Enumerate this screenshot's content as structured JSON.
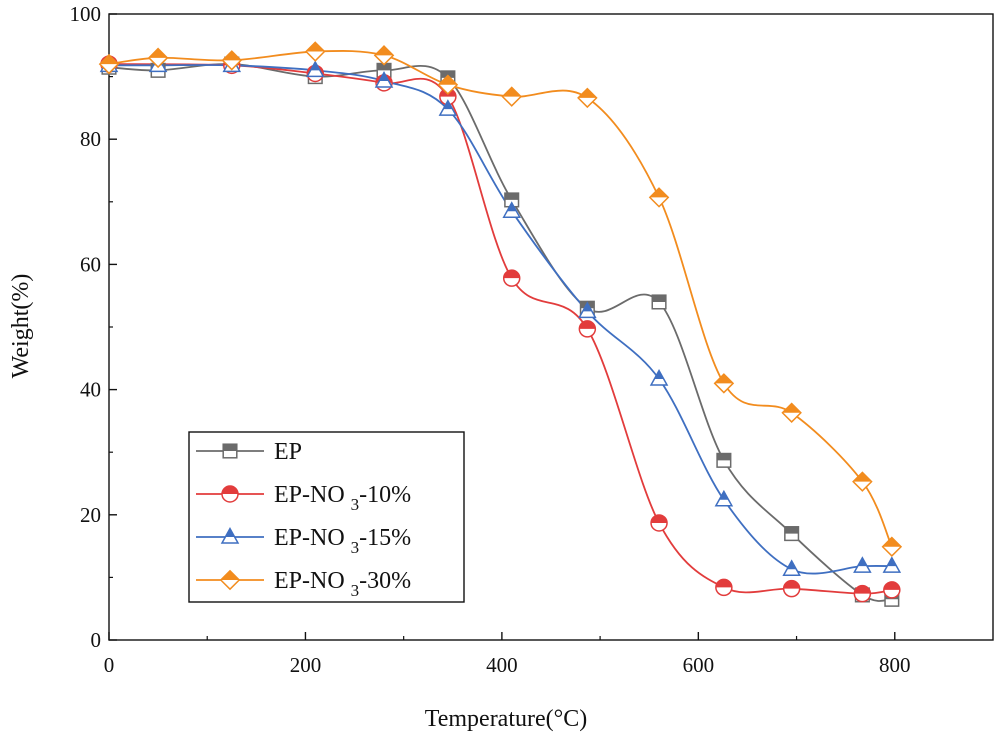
{
  "chart_data": {
    "type": "line",
    "title": "",
    "xlabel": "Temperature(°C)",
    "ylabel": "Weight(%)",
    "xlim": [
      0,
      900
    ],
    "ylim": [
      0,
      100
    ],
    "xticks": [
      0,
      200,
      400,
      600,
      800
    ],
    "yticks": [
      0,
      20,
      40,
      60,
      80,
      100
    ],
    "grid": false,
    "legend_position": "lower-left",
    "series": [
      {
        "name": "EP",
        "legend": {
          "main": "EP",
          "sub": "",
          "tail": ""
        },
        "color": "#6b6b6b",
        "marker": "square-half",
        "points": [
          [
            0,
            91.5
          ],
          [
            50,
            91.0
          ],
          [
            125,
            92.0
          ],
          [
            210,
            90.0
          ],
          [
            280,
            91.0
          ],
          [
            345,
            89.8
          ],
          [
            410,
            70.3
          ],
          [
            487,
            53.0
          ],
          [
            560,
            54.0
          ],
          [
            626,
            28.7
          ],
          [
            695,
            17.0
          ],
          [
            767,
            7.2
          ],
          [
            797,
            6.5
          ]
        ]
      },
      {
        "name": "EP-NO3-10%",
        "legend": {
          "main": "EP-NO",
          "sub": "3",
          "tail": "-10%"
        },
        "color": "#e23c3c",
        "marker": "circle-half",
        "points": [
          [
            0,
            92.0
          ],
          [
            125,
            91.8
          ],
          [
            210,
            90.5
          ],
          [
            280,
            89.0
          ],
          [
            345,
            86.8
          ],
          [
            410,
            57.8
          ],
          [
            487,
            49.7
          ],
          [
            560,
            18.7
          ],
          [
            626,
            8.4
          ],
          [
            695,
            8.2
          ],
          [
            767,
            7.4
          ],
          [
            797,
            8.0
          ]
        ]
      },
      {
        "name": "EP-NO3-15%",
        "legend": {
          "main": "EP-NO",
          "sub": "3",
          "tail": "-15%"
        },
        "color": "#3f6fc1",
        "marker": "triangle-half",
        "points": [
          [
            0,
            91.8
          ],
          [
            50,
            91.8
          ],
          [
            125,
            91.8
          ],
          [
            210,
            91.0
          ],
          [
            280,
            89.3
          ],
          [
            345,
            84.8
          ],
          [
            410,
            68.5
          ],
          [
            487,
            52.5
          ],
          [
            560,
            41.7
          ],
          [
            626,
            22.4
          ],
          [
            695,
            11.3
          ],
          [
            767,
            11.8
          ],
          [
            797,
            11.8
          ]
        ]
      },
      {
        "name": "EP-NO3-30%",
        "legend": {
          "main": "EP-NO",
          "sub": "3",
          "tail": "-30%"
        },
        "color": "#f28c1e",
        "marker": "diamond-half",
        "points": [
          [
            0,
            92.0
          ],
          [
            50,
            93.0
          ],
          [
            125,
            92.6
          ],
          [
            210,
            94.0
          ],
          [
            280,
            93.4
          ],
          [
            345,
            88.7
          ],
          [
            410,
            86.8
          ],
          [
            487,
            86.6
          ],
          [
            560,
            70.7
          ],
          [
            626,
            41.0
          ],
          [
            695,
            36.3
          ],
          [
            767,
            25.3
          ],
          [
            797,
            14.9
          ]
        ]
      }
    ]
  }
}
